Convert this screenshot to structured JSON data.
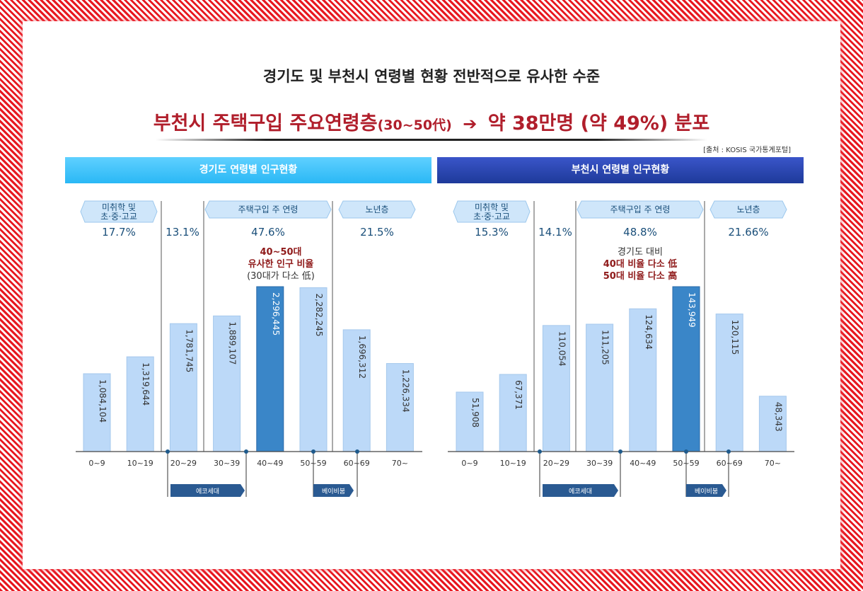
{
  "header": {
    "line1": "경기도 및 부천시 연령별 현황 전반적으로 유사한 수준",
    "line2_main": "부천시 주택구입 주요연령층",
    "line2_small": "(30~50代)",
    "line2_arrow": "➔",
    "line2_result": "약 38만명 (약 49%) 분포",
    "source": "[출처 : KOSIS 국가통계포털]"
  },
  "colors": {
    "bar": "#bcd9f8",
    "bar_highlight": "#3a86c8",
    "label_red": "#b01e2b",
    "group_text": "#1a4f7a"
  },
  "chart_data": [
    {
      "type": "bar",
      "title": "경기도 연령별 인구현황",
      "categories": [
        "0~9",
        "10~19",
        "20~29",
        "30~39",
        "40~49",
        "50~59",
        "60~69",
        "70~"
      ],
      "values": [
        1084104,
        1319644,
        1781745,
        1889107,
        2296445,
        2282245,
        1696312,
        1226334
      ],
      "value_labels": [
        "1,084,104",
        "1,319,644",
        "1,781,745",
        "1,889,107",
        "2,296,445",
        "2,282,245",
        "1,696,312",
        "1,226,334"
      ],
      "highlight_index": 4,
      "groups": [
        {
          "label": "미취학 및\n초·중·고교",
          "percent": "17.7%"
        },
        {
          "label": "",
          "percent": "13.1%"
        },
        {
          "label": "주택구입 주 연령",
          "percent": "47.6%"
        },
        {
          "label": "노년층",
          "percent": "21.5%"
        }
      ],
      "annotation": [
        "40~50대",
        "유사한 인구 비율",
        "(30대가 다소 低)"
      ],
      "generation_tags": [
        "에코세대",
        "베이비붐"
      ],
      "ylim": [
        0,
        2300000
      ]
    },
    {
      "type": "bar",
      "title": "부천시 연령별 인구현황",
      "categories": [
        "0~9",
        "10~19",
        "20~29",
        "30~39",
        "40~49",
        "50~59",
        "60~69",
        "70~"
      ],
      "values": [
        51908,
        67371,
        110054,
        111205,
        124634,
        143949,
        120115,
        48343
      ],
      "value_labels": [
        "51,908",
        "67,371",
        "110,054",
        "111,205",
        "124,634",
        "143,949",
        "120,115",
        "48,343"
      ],
      "highlight_index": 5,
      "groups": [
        {
          "label": "미취학 및\n초·중·고교",
          "percent": "15.3%"
        },
        {
          "label": "",
          "percent": "14.1%"
        },
        {
          "label": "주택구입 주 연령",
          "percent": "48.8%"
        },
        {
          "label": "노년층",
          "percent": "21.66%"
        }
      ],
      "annotation": [
        "경기도 대비",
        "40대 비율 다소 低",
        "50대 비율 다소 高"
      ],
      "generation_tags": [
        "에코세대",
        "베이비붐"
      ],
      "ylim": [
        0,
        146000
      ]
    }
  ]
}
